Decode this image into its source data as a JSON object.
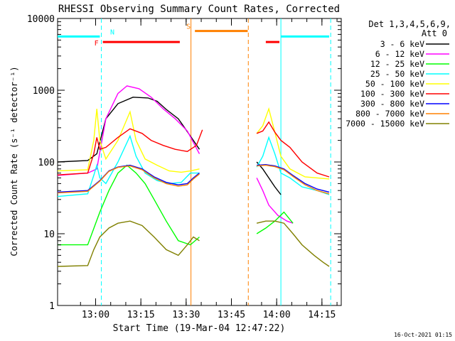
{
  "chart_data": {
    "type": "line",
    "title": "RHESSI Observing Summary Count Rates, Corrected",
    "xlabel": "Start Time (19-Mar-04 12:47:22)",
    "ylabel": "Corrected Count Rate (s⁻¹ detector⁻¹)",
    "y_scale": "log",
    "ylim": [
      1,
      10000
    ],
    "xlim_minutes": [
      0,
      94
    ],
    "x_tick_labels": [
      "13:00",
      "13:15",
      "13:30",
      "13:45",
      "14:00",
      "14:15"
    ],
    "x_tick_minutes": [
      12.6,
      27.6,
      42.6,
      57.6,
      72.6,
      87.6
    ],
    "y_tick_labels": [
      "1",
      "10",
      "100",
      "1000",
      "10000"
    ],
    "y_tick_values": [
      1,
      10,
      100,
      1000,
      10000
    ],
    "legend_header": [
      "Det 1,3,4,5,6,9,",
      "Att 0"
    ],
    "legend_position": "right",
    "timestamp": "16-Oct-2021 01:15",
    "series": [
      {
        "name": "3 - 6 keV",
        "color": "#000000",
        "segments": [
          [
            [
              0,
              100
            ],
            [
              10,
              105
            ],
            [
              13,
              130
            ],
            [
              16,
              400
            ],
            [
              20,
              650
            ],
            [
              25,
              800
            ],
            [
              30,
              780
            ],
            [
              33,
              700
            ],
            [
              36,
              540
            ],
            [
              40,
              400
            ],
            [
              44,
              230
            ],
            [
              47,
              150
            ]
          ],
          [
            [
              66,
              100
            ],
            [
              68,
              80
            ],
            [
              70,
              60
            ],
            [
              72,
              45
            ],
            [
              74,
              35
            ]
          ]
        ]
      },
      {
        "name": "6 - 12 keV",
        "color": "#ff00ff",
        "segments": [
          [
            [
              0,
              65
            ],
            [
              10,
              70
            ],
            [
              13,
              80
            ],
            [
              16,
              400
            ],
            [
              20,
              900
            ],
            [
              23,
              1150
            ],
            [
              27,
              1050
            ],
            [
              31,
              800
            ],
            [
              35,
              550
            ],
            [
              39,
              400
            ],
            [
              43,
              270
            ],
            [
              47,
              130
            ]
          ],
          [
            [
              66,
              60
            ],
            [
              68,
              40
            ],
            [
              70,
              25
            ],
            [
              73,
              18
            ],
            [
              76,
              15
            ],
            [
              78,
              14
            ]
          ]
        ]
      },
      {
        "name": "12 - 25 keV",
        "color": "#00ff00",
        "segments": [
          [
            [
              0,
              7
            ],
            [
              10,
              7
            ],
            [
              14,
              20
            ],
            [
              17,
              40
            ],
            [
              20,
              70
            ],
            [
              23,
              90
            ],
            [
              26,
              70
            ],
            [
              29,
              50
            ],
            [
              32,
              30
            ],
            [
              36,
              15
            ],
            [
              40,
              8
            ],
            [
              44,
              7
            ],
            [
              47,
              9
            ]
          ],
          [
            [
              66,
              10
            ],
            [
              69,
              12
            ],
            [
              72,
              15
            ],
            [
              75,
              20
            ],
            [
              78,
              14
            ]
          ]
        ]
      },
      {
        "name": "25 - 50 keV",
        "color": "#00ffff",
        "segments": [
          [
            [
              0,
              33
            ],
            [
              10,
              36
            ],
            [
              12,
              65
            ],
            [
              13,
              90
            ],
            [
              14,
              60
            ],
            [
              16,
              50
            ],
            [
              20,
              100
            ],
            [
              24,
              230
            ],
            [
              26,
              120
            ],
            [
              29,
              70
            ],
            [
              33,
              55
            ],
            [
              37,
              50
            ],
            [
              41,
              52
            ],
            [
              44,
              70
            ],
            [
              47,
              70
            ]
          ],
          [
            [
              66,
              85
            ],
            [
              68,
              120
            ],
            [
              70,
              220
            ],
            [
              72,
              130
            ],
            [
              74,
              70
            ],
            [
              77,
              60
            ],
            [
              81,
              45
            ],
            [
              86,
              40
            ],
            [
              90,
              35
            ]
          ]
        ]
      },
      {
        "name": "50 - 100 keV",
        "color": "#ffff00",
        "segments": [
          [
            [
              0,
              75
            ],
            [
              10,
              78
            ],
            [
              12,
              200
            ],
            [
              13,
              550
            ],
            [
              14,
              200
            ],
            [
              16,
              110
            ],
            [
              20,
              200
            ],
            [
              24,
              500
            ],
            [
              26,
              200
            ],
            [
              29,
              110
            ],
            [
              33,
              90
            ],
            [
              37,
              75
            ],
            [
              41,
              72
            ],
            [
              44,
              75
            ],
            [
              47,
              80
            ]
          ],
          [
            [
              66,
              250
            ],
            [
              68,
              320
            ],
            [
              70,
              550
            ],
            [
              72,
              260
            ],
            [
              74,
              120
            ],
            [
              77,
              80
            ],
            [
              82,
              62
            ],
            [
              86,
              60
            ],
            [
              90,
              58
            ]
          ]
        ]
      },
      {
        "name": "100 - 300 keV",
        "color": "#ff0000",
        "segments": [
          [
            [
              0,
              66
            ],
            [
              10,
              70
            ],
            [
              12,
              130
            ],
            [
              13,
              220
            ],
            [
              14,
              150
            ],
            [
              16,
              160
            ],
            [
              20,
              220
            ],
            [
              24,
              290
            ],
            [
              28,
              250
            ],
            [
              31,
              200
            ],
            [
              35,
              170
            ],
            [
              39,
              150
            ],
            [
              43,
              140
            ],
            [
              46,
              170
            ],
            [
              48,
              280
            ]
          ],
          [
            [
              66,
              250
            ],
            [
              68,
              270
            ],
            [
              70,
              360
            ],
            [
              72,
              260
            ],
            [
              74,
              200
            ],
            [
              77,
              160
            ],
            [
              81,
              100
            ],
            [
              86,
              70
            ],
            [
              90,
              62
            ]
          ]
        ]
      },
      {
        "name": "300 - 800 keV",
        "color": "#0000ff",
        "segments": [
          [
            [
              0,
              38
            ],
            [
              10,
              40
            ],
            [
              14,
              55
            ],
            [
              17,
              75
            ],
            [
              20,
              85
            ],
            [
              24,
              90
            ],
            [
              28,
              80
            ],
            [
              32,
              62
            ],
            [
              36,
              52
            ],
            [
              40,
              48
            ],
            [
              43,
              50
            ],
            [
              45,
              60
            ],
            [
              47,
              70
            ]
          ],
          [
            [
              66,
              90
            ],
            [
              69,
              92
            ],
            [
              72,
              88
            ],
            [
              75,
              80
            ],
            [
              78,
              65
            ],
            [
              82,
              50
            ],
            [
              86,
              42
            ],
            [
              90,
              38
            ]
          ]
        ]
      },
      {
        "name": "800 - 7000 keV",
        "color": "#ff8000",
        "segments": [
          [
            [
              0,
              37
            ],
            [
              10,
              39
            ],
            [
              14,
              54
            ],
            [
              17,
              74
            ],
            [
              20,
              84
            ],
            [
              24,
              88
            ],
            [
              28,
              78
            ],
            [
              32,
              60
            ],
            [
              36,
              50
            ],
            [
              40,
              46
            ],
            [
              43,
              48
            ],
            [
              45,
              58
            ],
            [
              47,
              68
            ]
          ],
          [
            [
              66,
              88
            ],
            [
              69,
              90
            ],
            [
              72,
              86
            ],
            [
              75,
              78
            ],
            [
              78,
              63
            ],
            [
              82,
              48
            ],
            [
              86,
              40
            ],
            [
              90,
              36
            ]
          ]
        ]
      },
      {
        "name": "7000 - 15000 keV",
        "color": "#808000",
        "segments": [
          [
            [
              0,
              3.5
            ],
            [
              10,
              3.6
            ],
            [
              12,
              6
            ],
            [
              14,
              9
            ],
            [
              17,
              12
            ],
            [
              20,
              14
            ],
            [
              24,
              15
            ],
            [
              28,
              13
            ],
            [
              32,
              9
            ],
            [
              36,
              6
            ],
            [
              40,
              5
            ],
            [
              43,
              7
            ],
            [
              45,
              9
            ],
            [
              47,
              8
            ]
          ],
          [
            [
              66,
              14
            ],
            [
              69,
              15
            ],
            [
              72,
              15
            ],
            [
              75,
              14
            ],
            [
              78,
              10
            ],
            [
              81,
              7
            ],
            [
              85,
              5
            ],
            [
              88,
              4
            ],
            [
              90,
              3.5
            ]
          ]
        ]
      }
    ],
    "flag_bars": [
      {
        "label": "N",
        "color": "#00ffff",
        "segments": [
          [
            0,
            14
          ],
          [
            74,
            90
          ]
        ],
        "level": 5600
      },
      {
        "label": "F",
        "color": "#ff0000",
        "segments": [
          [
            15,
            40.5
          ],
          [
            69,
            73.5
          ]
        ],
        "level": 4700
      },
      {
        "label": "S",
        "color": "#ff8000",
        "segments": [
          [
            45.5,
            63
          ]
        ],
        "level": 6700
      }
    ],
    "event_lines": [
      {
        "minute": 14.5,
        "color": "#00ffff",
        "style": "dashed"
      },
      {
        "minute": 44.2,
        "color": "#ff8000",
        "style": "solid"
      },
      {
        "minute": 63.2,
        "color": "#ff8000",
        "style": "dashed"
      },
      {
        "minute": 74.0,
        "color": "#00ffff",
        "style": "solid"
      },
      {
        "minute": 90.5,
        "color": "#00ffff",
        "style": "dashed"
      }
    ]
  }
}
